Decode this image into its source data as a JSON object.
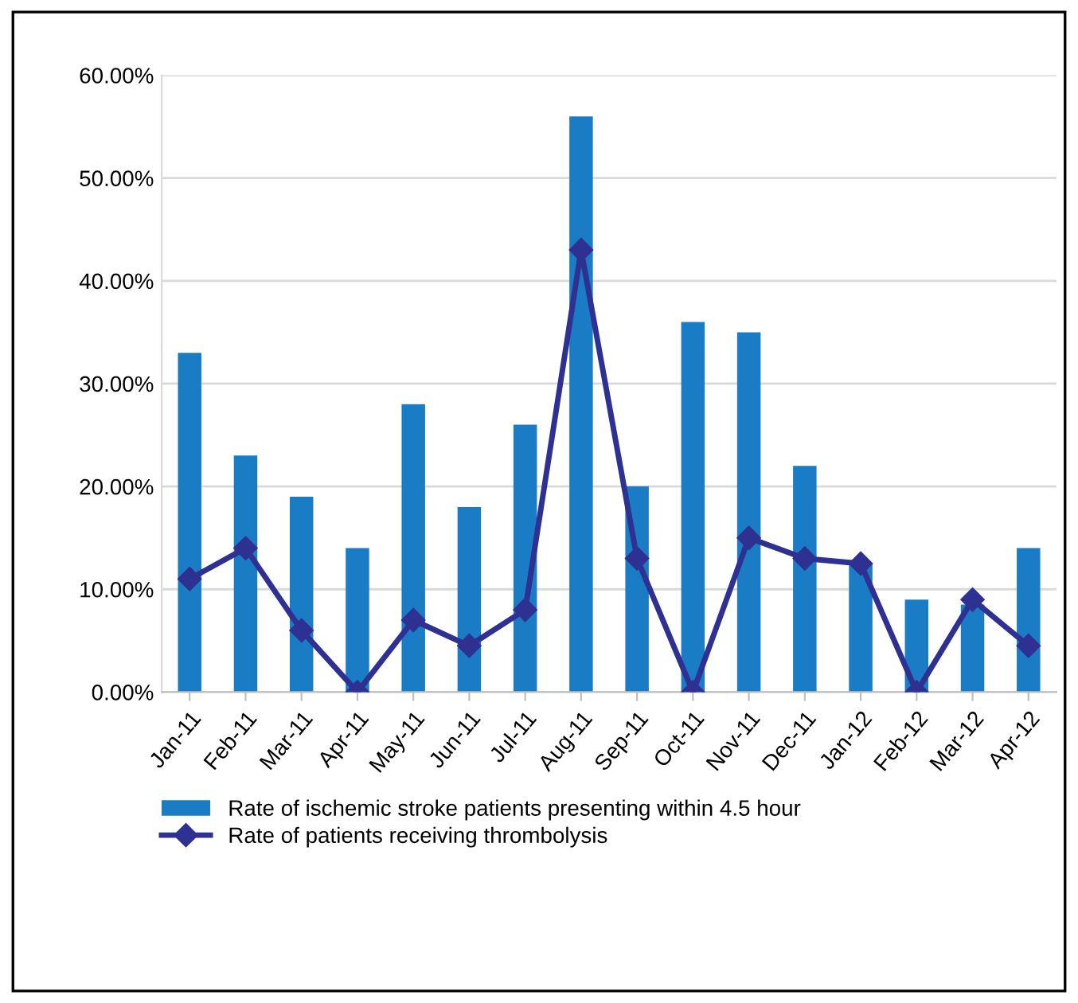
{
  "chart_data": {
    "type": "bar",
    "categories": [
      "Jan-11",
      "Feb-11",
      "Mar-11",
      "Apr-11",
      "May-11",
      "Jun-11",
      "Jul-11",
      "Aug-11",
      "Sep-11",
      "Oct-11",
      "Nov-11",
      "Dec-11",
      "Jan-12",
      "Feb-12",
      "Mar-12",
      "Apr-12"
    ],
    "series": [
      {
        "name": "Rate of ischemic stroke patients presenting within 4.5 hour",
        "color": "#1a7cc4",
        "values": [
          33,
          23,
          19,
          14,
          28,
          18,
          26,
          56,
          20,
          36,
          35,
          22,
          12.5,
          9,
          8.5,
          14
        ]
      },
      {
        "name": "Rate of patients receiving thrombolysis",
        "type": "line",
        "color": "#2e3192",
        "marker": "diamond",
        "values": [
          11,
          14,
          6,
          0,
          7,
          4.5,
          8,
          43,
          13,
          0,
          15,
          13,
          12.5,
          0,
          9,
          4.5
        ]
      }
    ],
    "ylim": [
      0,
      60
    ],
    "yticks": [
      {
        "value": 0,
        "label": "0.00%"
      },
      {
        "value": 10,
        "label": "10.00%"
      },
      {
        "value": 20,
        "label": "20.00%"
      },
      {
        "value": 30,
        "label": "30.00%"
      },
      {
        "value": 40,
        "label": "40.00%"
      },
      {
        "value": 50,
        "label": "50.00%"
      },
      {
        "value": 60,
        "label": "60.00%"
      }
    ],
    "grid": "y",
    "legend": "bottom"
  }
}
